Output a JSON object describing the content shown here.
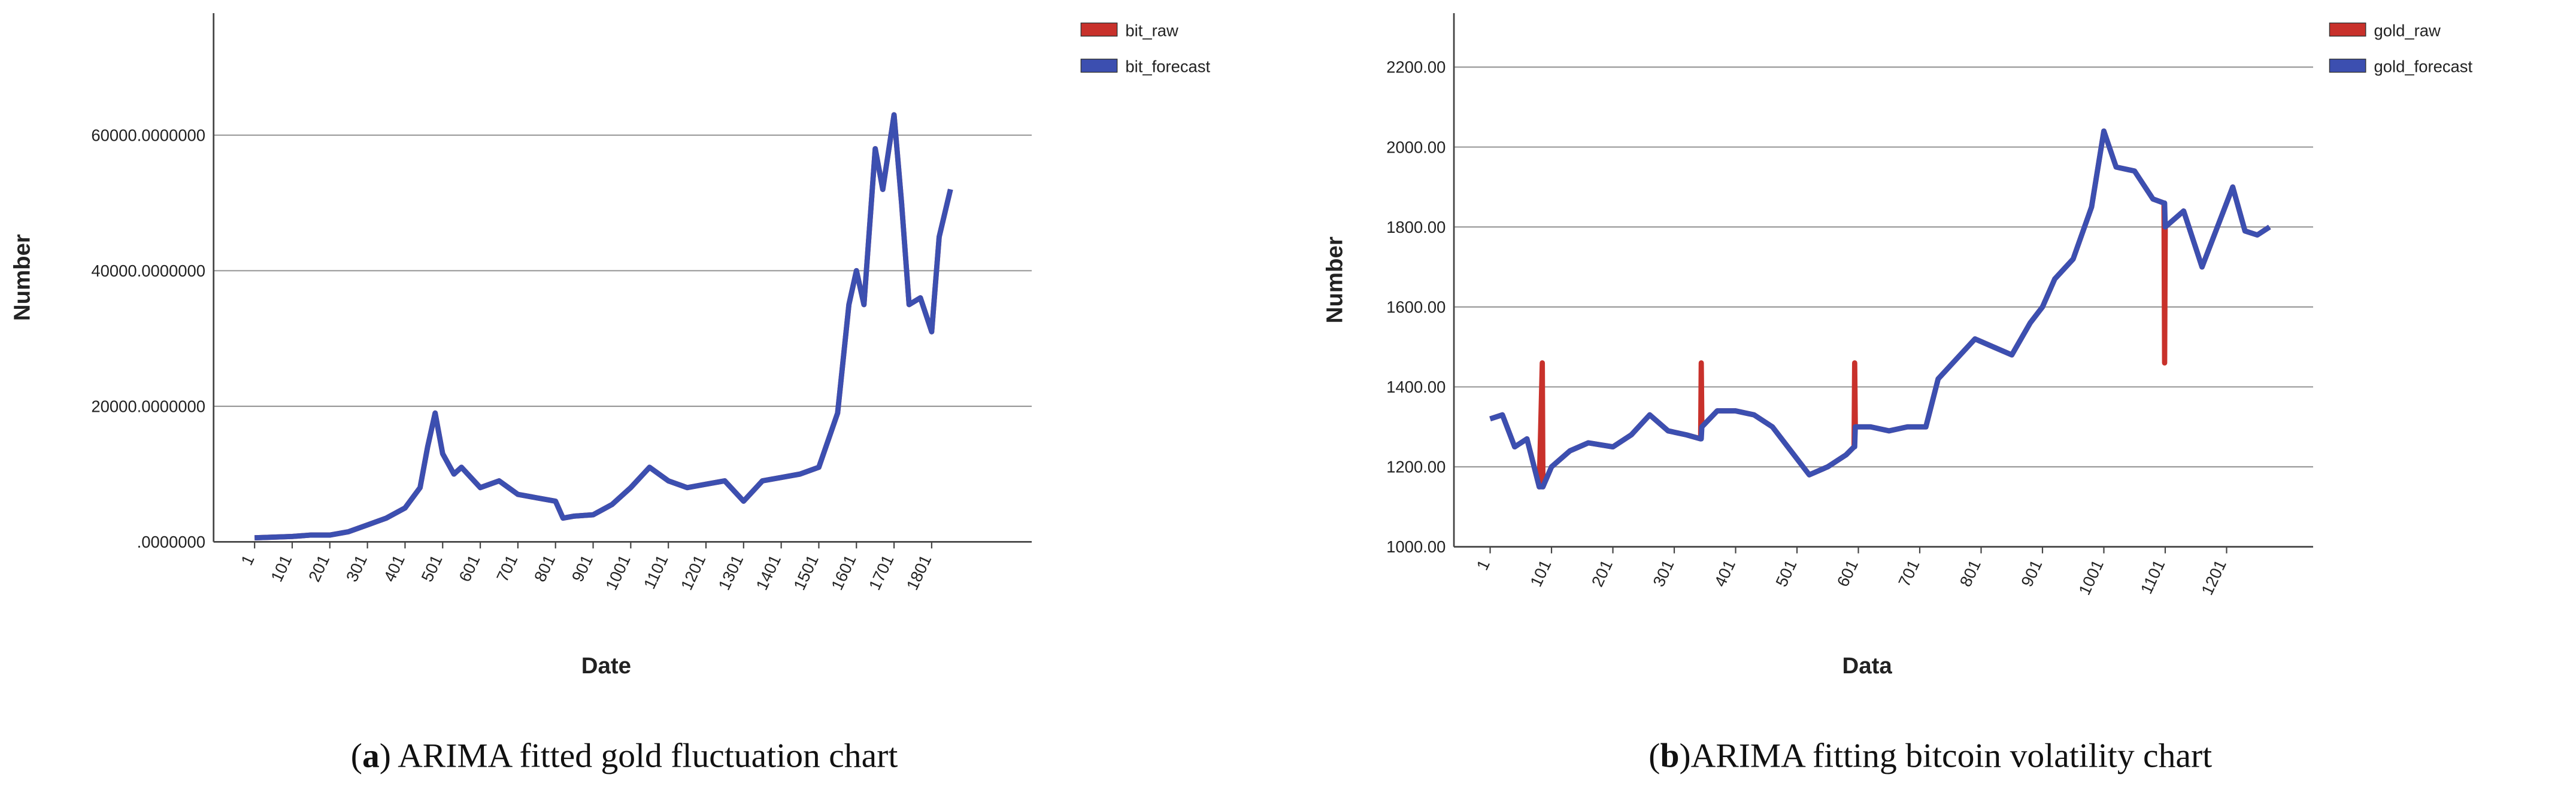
{
  "chart_data": [
    {
      "type": "line",
      "ylabel": "Number",
      "xlabel": "Date",
      "caption": {
        "open": "(",
        "label": "a",
        "text": ") ARIMA fitted gold fluctuation chart"
      },
      "legend": "right",
      "grid": true,
      "x": [
        1,
        51,
        101,
        151,
        201,
        251,
        301,
        351,
        401,
        441,
        461,
        481,
        501,
        531,
        551,
        601,
        651,
        701,
        751,
        801,
        821,
        851,
        901,
        951,
        1001,
        1051,
        1101,
        1151,
        1201,
        1251,
        1301,
        1351,
        1401,
        1451,
        1501,
        1551,
        1581,
        1601,
        1621,
        1651,
        1671,
        1701,
        1721,
        1741,
        1771,
        1801,
        1821,
        1851
      ],
      "series": [
        {
          "name": "bit_raw",
          "color": "#c8312b",
          "values": [
            600,
            700,
            800,
            1000,
            1000,
            1500,
            2500,
            3500,
            5000,
            8000,
            14000,
            19000,
            13000,
            10000,
            11000,
            8000,
            9000,
            7000,
            6500,
            6000,
            3500,
            3800,
            4000,
            5500,
            8000,
            11000,
            9000,
            8000,
            8500,
            9000,
            6000,
            9000,
            9500,
            10000,
            11000,
            19000,
            35000,
            40000,
            35000,
            58000,
            52000,
            63000,
            50000,
            35000,
            36000,
            31000,
            45000,
            52000
          ]
        },
        {
          "name": "bit_forecast",
          "color": "#3c4fb0",
          "values": [
            600,
            700,
            800,
            1000,
            1000,
            1500,
            2500,
            3500,
            5000,
            8000,
            14000,
            19000,
            13000,
            10000,
            11000,
            8000,
            9000,
            7000,
            6500,
            6000,
            3500,
            3800,
            4000,
            5500,
            8000,
            11000,
            9000,
            8000,
            8500,
            9000,
            6000,
            9000,
            9500,
            10000,
            11000,
            19000,
            35000,
            40000,
            35000,
            58000,
            52000,
            63000,
            50000,
            35000,
            36000,
            31000,
            45000,
            52000
          ]
        }
      ],
      "xlim": [
        -108,
        2067
      ],
      "xticks": [
        1,
        101,
        201,
        301,
        401,
        501,
        601,
        701,
        801,
        901,
        1001,
        1101,
        1201,
        1301,
        1401,
        1501,
        1601,
        1701,
        1801
      ],
      "ylim": [
        0,
        78000
      ],
      "yticks": [
        {
          "value": 0,
          "label": ".0000000"
        },
        {
          "value": 20000,
          "label": "20000.0000000"
        },
        {
          "value": 40000,
          "label": "40000.0000000"
        },
        {
          "value": 60000,
          "label": "60000.0000000"
        }
      ]
    },
    {
      "type": "line",
      "ylabel": "Number",
      "xlabel": "Data",
      "caption": {
        "open": "(",
        "label": "b",
        "text": ")ARIMA fitting bitcoin volatility chart"
      },
      "legend": "right",
      "grid": true,
      "x": [
        1,
        21,
        41,
        61,
        81,
        86,
        87,
        101,
        131,
        161,
        201,
        231,
        261,
        291,
        321,
        344,
        345,
        346,
        371,
        401,
        431,
        461,
        491,
        521,
        551,
        581,
        594,
        595,
        596,
        621,
        651,
        681,
        711,
        731,
        761,
        791,
        821,
        851,
        881,
        901,
        921,
        951,
        981,
        1001,
        1021,
        1051,
        1081,
        1099,
        1100,
        1101,
        1131,
        1161,
        1191,
        1211,
        1231,
        1251,
        1271
      ],
      "series": [
        {
          "name": "gold_raw",
          "color": "#c8312b",
          "values": [
            1320,
            1330,
            1250,
            1270,
            1150,
            1460,
            1150,
            1200,
            1240,
            1260,
            1250,
            1280,
            1330,
            1290,
            1280,
            1270,
            1460,
            1300,
            1340,
            1340,
            1330,
            1300,
            1240,
            1180,
            1200,
            1230,
            1250,
            1460,
            1300,
            1300,
            1290,
            1300,
            1300,
            1420,
            1470,
            1520,
            1500,
            1480,
            1560,
            1600,
            1670,
            1720,
            1850,
            2040,
            1950,
            1940,
            1870,
            1860,
            1460,
            1800,
            1840,
            1700,
            1820,
            1900,
            1790,
            1780,
            1800
          ]
        },
        {
          "name": "gold_forecast",
          "color": "#3c4fb0",
          "values": [
            1320,
            1330,
            1250,
            1270,
            1150,
            1150,
            1150,
            1200,
            1240,
            1260,
            1250,
            1280,
            1330,
            1290,
            1280,
            1270,
            1270,
            1300,
            1340,
            1340,
            1330,
            1300,
            1240,
            1180,
            1200,
            1230,
            1250,
            1250,
            1300,
            1300,
            1290,
            1300,
            1300,
            1420,
            1470,
            1520,
            1500,
            1480,
            1560,
            1600,
            1670,
            1720,
            1850,
            2040,
            1950,
            1940,
            1870,
            1860,
            1860,
            1800,
            1840,
            1700,
            1820,
            1900,
            1790,
            1780,
            1800
          ]
        }
      ],
      "xlim": [
        -58,
        1342
      ],
      "xticks": [
        1,
        101,
        201,
        301,
        401,
        501,
        601,
        701,
        801,
        901,
        1001,
        1101,
        1201
      ],
      "ylim": [
        1000,
        2335
      ],
      "yticks": [
        {
          "value": 1000,
          "label": "1000.00"
        },
        {
          "value": 1200,
          "label": "1200.00"
        },
        {
          "value": 1400,
          "label": "1400.00"
        },
        {
          "value": 1600,
          "label": "1600.00"
        },
        {
          "value": 1800,
          "label": "1800.00"
        },
        {
          "value": 2000,
          "label": "2000.00"
        },
        {
          "value": 2200,
          "label": "2200.00"
        }
      ]
    }
  ]
}
